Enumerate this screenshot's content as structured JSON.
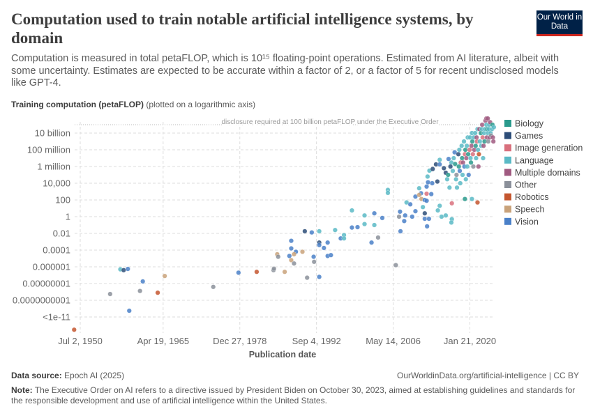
{
  "title": "Computation used to train notable artificial intelligence systems, by domain",
  "logo": "Our World in Data",
  "subtitle": "Computation is measured in total petaFLOP, which is 10¹⁵ floating-point operations. Estimated from AI literature, albeit with some uncertainty. Estimates are expected to be accurate within a factor of 2, or a factor of 5 for recent undisclosed models like GPT-4.",
  "footer": {
    "source_label": "Data source:",
    "source": "Epoch AI (2025)",
    "url": "OurWorldinData.org/artificial-intelligence | CC BY",
    "note_label": "Note:",
    "note": "The Executive Order on AI refers to a directive issued by President Biden on October 30, 2023, aimed at establishing guidelines and standards for the responsible development and use of artificial intelligence within the United States."
  },
  "chart_data": {
    "type": "scatter",
    "ylabel_bold": "Training computation (petaFLOP)",
    "ylabel_note": "(plotted on a logarithmic axis)",
    "xlabel": "Publication date",
    "y_scale": "log",
    "ylim": [
      1e-13,
      1000000000000.0
    ],
    "xlim": [
      "1949-06-01",
      "2024-08-01"
    ],
    "grid": true,
    "legend_position": "right",
    "yticks": [
      {
        "v": 10000000000.0,
        "label": "10 billion"
      },
      {
        "v": 100000000.0,
        "label": "100 million"
      },
      {
        "v": 1000000.0,
        "label": "1 million"
      },
      {
        "v": 10000.0,
        "label": "10,000"
      },
      {
        "v": 100,
        "label": "100"
      },
      {
        "v": 1,
        "label": "1"
      },
      {
        "v": 0.01,
        "label": "0.01"
      },
      {
        "v": 0.0001,
        "label": "0.0001"
      },
      {
        "v": 1e-06,
        "label": "0.000001"
      },
      {
        "v": 1e-08,
        "label": "0.00000001"
      },
      {
        "v": 1e-10,
        "label": "0.0000000001"
      },
      {
        "v": 1e-12,
        "label": "<1e-11"
      }
    ],
    "xticks": [
      {
        "date": "1950-07-02",
        "label": "Jul 2, 1950"
      },
      {
        "date": "1965-04-19",
        "label": "Apr 19, 1965"
      },
      {
        "date": "1978-12-27",
        "label": "Dec 27, 1978"
      },
      {
        "date": "1992-09-04",
        "label": "Sep 4, 1992"
      },
      {
        "date": "2006-05-14",
        "label": "May 14, 2006"
      },
      {
        "date": "2020-01-21",
        "label": "Jan 21, 2020"
      }
    ],
    "annotation": {
      "value": 100000000000.0,
      "label": "disclosure required at 100 billion petaFLOP under the Executive Order"
    },
    "categories": [
      {
        "name": "Biology",
        "color": "#2a9a8c"
      },
      {
        "name": "Games",
        "color": "#2d4d78"
      },
      {
        "name": "Image generation",
        "color": "#d9707d"
      },
      {
        "name": "Language",
        "color": "#5bbac6"
      },
      {
        "name": "Multiple domains",
        "color": "#a05a80"
      },
      {
        "name": "Other",
        "color": "#8b909a"
      },
      {
        "name": "Robotics",
        "color": "#c4562f"
      },
      {
        "name": "Speech",
        "color": "#c9a27a"
      },
      {
        "name": "Vision",
        "color": "#4a80c8"
      }
    ],
    "points": [
      [
        "1949-06",
        3e-14,
        6
      ],
      [
        "1957-09",
        5e-07,
        3
      ],
      [
        "1958-04",
        4e-07,
        1
      ],
      [
        "1959-01",
        5.6e-07,
        8
      ],
      [
        "1955-11",
        5.6e-10,
        5
      ],
      [
        "1959-04",
        5.6e-12,
        8
      ],
      [
        "1961-09",
        1.8e-08,
        8
      ],
      [
        "1961-03",
        1.3e-09,
        5
      ],
      [
        "1964-05",
        8e-10,
        6
      ],
      [
        "1965-08",
        8e-08,
        7
      ],
      [
        "1974-04",
        4e-09,
        5
      ],
      [
        "1978-10",
        2e-07,
        8
      ],
      [
        "1982-01",
        2.5e-07,
        6
      ],
      [
        "1985-01",
        4e-07,
        5
      ],
      [
        "1985-02",
        6e-07,
        5
      ],
      [
        "1987-01",
        2.5e-07,
        7
      ],
      [
        "1985-09",
        3.2e-05,
        7
      ],
      [
        "1985-11",
        1.6e-05,
        5
      ],
      [
        "1988-03",
        0.0013,
        8
      ],
      [
        "1988-03",
        0.00016,
        8
      ],
      [
        "1987-11",
        2e-05,
        8
      ],
      [
        "1988-03",
        6.3e-06,
        7
      ],
      [
        "1989-01",
        6.3e-05,
        8
      ],
      [
        "1988-09",
        3.2e-05,
        7
      ],
      [
        "1988-09",
        2.5e-06,
        5
      ],
      [
        "1990-03",
        6.3e-05,
        7
      ],
      [
        "1991-01",
        5e-08,
        5
      ],
      [
        "1990-08",
        0.018,
        1
      ],
      [
        "1991-11",
        0.013,
        8
      ],
      [
        "1993-03",
        0.018,
        3
      ],
      [
        "1993-03",
        0.0008,
        1
      ],
      [
        "1993-03",
        0.0004,
        8
      ],
      [
        "1992-03",
        1.6e-05,
        8
      ],
      [
        "1992-04",
        4e-06,
        5
      ],
      [
        "1994-01",
        0.00018,
        8
      ],
      [
        "1994-09",
        0.0008,
        8
      ],
      [
        "1994-09",
        2e-05,
        8
      ],
      [
        "1995-04",
        2.5e-05,
        8
      ],
      [
        "1993-03",
        6.3e-08,
        8
      ],
      [
        "1996-01",
        0.025,
        3
      ],
      [
        "1997-01",
        0.0025,
        8
      ],
      [
        "1997-08",
        0.0063,
        3
      ],
      [
        "1997-08",
        0.0025,
        3
      ],
      [
        "1999-01",
        5.6,
        3
      ],
      [
        "1999-01",
        0.05,
        8
      ],
      [
        "2000-01",
        0.056,
        8
      ],
      [
        "2001-04",
        1.4,
        3
      ],
      [
        "2001-04",
        0.13,
        3
      ],
      [
        "2003-01",
        2.5,
        8
      ],
      [
        "2003-01",
        0.1,
        3
      ],
      [
        "2003-09",
        0.0032,
        5
      ],
      [
        "2002-07",
        0.0008,
        8
      ],
      [
        "2004-06",
        0.7,
        8
      ],
      [
        "2005-06",
        1600,
        3
      ],
      [
        "2005-06",
        700,
        3
      ],
      [
        "2006-11",
        1.6e-06,
        5
      ],
      [
        "2007-06",
        1,
        5
      ],
      [
        "2007-08",
        4,
        8
      ],
      [
        "2007-09",
        0.018,
        8
      ],
      [
        "2008-05",
        0.3,
        8
      ],
      [
        "2008-07",
        1.4,
        8
      ],
      [
        "2009-10",
        1,
        8
      ],
      [
        "2008-10",
        50,
        3
      ],
      [
        "2009-06",
        30,
        8
      ],
      [
        "2010-05",
        4.5,
        8
      ],
      [
        "2010-05",
        250,
        8
      ],
      [
        "2011-01",
        2500,
        3
      ],
      [
        "2011-05",
        630,
        8
      ],
      [
        "2011-01",
        400,
        7
      ],
      [
        "2011-06",
        130,
        7
      ],
      [
        "2012-01",
        100,
        8
      ],
      [
        "2012-01",
        2.5,
        1
      ],
      [
        "2011-09",
        14,
        3
      ],
      [
        "2012-01",
        0.56,
        8
      ],
      [
        "2012-06",
        0.07,
        8
      ],
      [
        "2012-10",
        0.56,
        8
      ],
      [
        "2012-05",
        80,
        8
      ],
      [
        "2012-05",
        560,
        2
      ],
      [
        "2012-07",
        63000,
        3
      ],
      [
        "2012-08",
        13000,
        8
      ],
      [
        "2012-05",
        4000,
        8
      ],
      [
        "2012-11",
        320000,
        3
      ],
      [
        "2013-06",
        500000,
        1
      ],
      [
        "2014-01",
        1800000.0,
        1
      ],
      [
        "2014-09",
        1800000.0,
        8
      ],
      [
        "2014-09",
        6300000.0,
        3
      ],
      [
        "2015-06",
        630000,
        1
      ],
      [
        "2015-10",
        180000,
        1
      ],
      [
        "2014-04",
        16000,
        1
      ],
      [
        "2013-05",
        10000,
        8
      ],
      [
        "2013-03",
        500,
        8
      ],
      [
        "2014-05",
        5.6,
        3
      ],
      [
        "2014-09",
        20,
        3
      ],
      [
        "2015-01",
        1,
        3
      ],
      [
        "2015-10",
        1.4,
        3
      ],
      [
        "2016-11",
        0.5,
        3
      ],
      [
        "2016-10",
        0.2,
        3
      ],
      [
        "2016-04",
        8000000.0,
        8
      ],
      [
        "2016-10",
        3000000.0,
        3
      ],
      [
        "2016-11",
        40,
        2
      ],
      [
        "2019-03",
        130,
        0
      ],
      [
        "2020-06",
        130,
        3
      ],
      [
        "2021-06",
        50,
        6
      ],
      [
        "2016-01",
        30000.0,
        3
      ],
      [
        "2016-03",
        100000.0,
        0
      ],
      [
        "2016-06",
        3000.0,
        3
      ],
      [
        "2016-08",
        1000000.0,
        1
      ],
      [
        "2017-01",
        300000.0,
        3
      ],
      [
        "2017-03",
        10000000.0,
        3
      ],
      [
        "2017-05",
        50000000.0,
        8
      ],
      [
        "2017-06",
        2000000.0,
        0
      ],
      [
        "2017-08",
        30000.0,
        3
      ],
      [
        "2017-09",
        100000.0,
        5
      ],
      [
        "2017-10",
        3000.0,
        3
      ],
      [
        "2018-01",
        30000000.0,
        1
      ],
      [
        "2018-02",
        1000000.0,
        0
      ],
      [
        "2018-03",
        100000000.0,
        3
      ],
      [
        "2018-04",
        300000.0,
        8
      ],
      [
        "2018-05",
        10000.0,
        3
      ],
      [
        "2018-06",
        3000000.0,
        2
      ],
      [
        "2018-08",
        300000000.0,
        3
      ],
      [
        "2018-09",
        10000000.0,
        0
      ],
      [
        "2018-10",
        100000.0,
        3
      ],
      [
        "2018-11",
        3000000.0,
        4
      ],
      [
        "2019-01",
        1000000000.0,
        3
      ],
      [
        "2019-02",
        1000000.0,
        8
      ],
      [
        "2019-03",
        30000000.0,
        2
      ],
      [
        "2019-04",
        100000000.0,
        0
      ],
      [
        "2019-05",
        30000.0,
        3
      ],
      [
        "2019-06",
        10000000.0,
        4
      ],
      [
        "2019-07",
        300000000.0,
        3
      ],
      [
        "2019-08",
        1000000.0,
        3
      ],
      [
        "2019-09",
        3000000000.0,
        3
      ],
      [
        "2019-10",
        30000000.0,
        0
      ],
      [
        "2019-11",
        100000.0,
        8
      ],
      [
        "2020-01",
        100000000.0,
        2
      ],
      [
        "2020-02",
        3000000000.0,
        3
      ],
      [
        "2020-03",
        10000000.0,
        3
      ],
      [
        "2020-04",
        3000000.0,
        0
      ],
      [
        "2020-05",
        300000000.0,
        4
      ],
      [
        "2020-06",
        10000000000.0,
        3
      ],
      [
        "2020-07",
        1000000000.0,
        0
      ],
      [
        "2020-08",
        30000000.0,
        2
      ],
      [
        "2020-09",
        1000000.0,
        5
      ],
      [
        "2020-10",
        3000000000.0,
        3
      ],
      [
        "2020-11",
        100000000.0,
        4
      ],
      [
        "2021-01",
        10000000000.0,
        3
      ],
      [
        "2021-02",
        300000000.0,
        0
      ],
      [
        "2021-03",
        10000000.0,
        3
      ],
      [
        "2021-04",
        3000000000.0,
        4
      ],
      [
        "2021-05",
        1000000000.0,
        2
      ],
      [
        "2021-06",
        30000000000.0,
        3
      ],
      [
        "2021-07",
        100000000.0,
        3
      ],
      [
        "2021-08",
        1000000.0,
        4
      ],
      [
        "2021-09",
        30000000.0,
        6
      ],
      [
        "2021-10",
        30000000000.0,
        4
      ],
      [
        "2021-11",
        1000000000.0,
        3
      ],
      [
        "2022-01",
        10000000000.0,
        0
      ],
      [
        "2022-02",
        300000000.0,
        3
      ],
      [
        "2022-03",
        30000000000.0,
        3
      ],
      [
        "2022-04",
        100000000000.0,
        4
      ],
      [
        "2022-05",
        3000000000.0,
        2
      ],
      [
        "2022-06",
        10000000.0,
        3
      ],
      [
        "2022-07",
        300000000.0,
        4
      ],
      [
        "2022-08",
        10000000000.0,
        3
      ],
      [
        "2022-09",
        1000000000.0,
        0
      ],
      [
        "2022-10",
        30000000000.0,
        3
      ],
      [
        "2022-11",
        300000000000.0,
        4
      ],
      [
        "2023-01",
        100000000000.0,
        3
      ],
      [
        "2023-02",
        3000000000.0,
        4
      ],
      [
        "2023-03",
        30000000000.0,
        0
      ],
      [
        "2023-04",
        10000000000.0,
        3
      ],
      [
        "2023-05",
        1000000000.0,
        5
      ],
      [
        "2023-06",
        30000000000.0,
        3
      ],
      [
        "2023-07",
        100000000000.0,
        3
      ],
      [
        "2023-08",
        3000000000.0,
        4
      ],
      [
        "2023-09",
        200000000000.0,
        4
      ],
      [
        "2023-10",
        10000000000.0,
        3
      ],
      [
        "2023-11",
        5000000000.0,
        5
      ],
      [
        "2024-01",
        30000000000.0,
        3
      ],
      [
        "2024-02",
        100000000000.0,
        0
      ],
      [
        "2024-03",
        3000000000.0,
        4
      ],
      [
        "2024-04",
        1000000000.0,
        4
      ],
      [
        "2024-05",
        50000000000.0,
        3
      ],
      [
        "2023-01",
        560000000000.0,
        4
      ],
      [
        "2023-04",
        560000000000.0,
        4
      ]
    ]
  }
}
